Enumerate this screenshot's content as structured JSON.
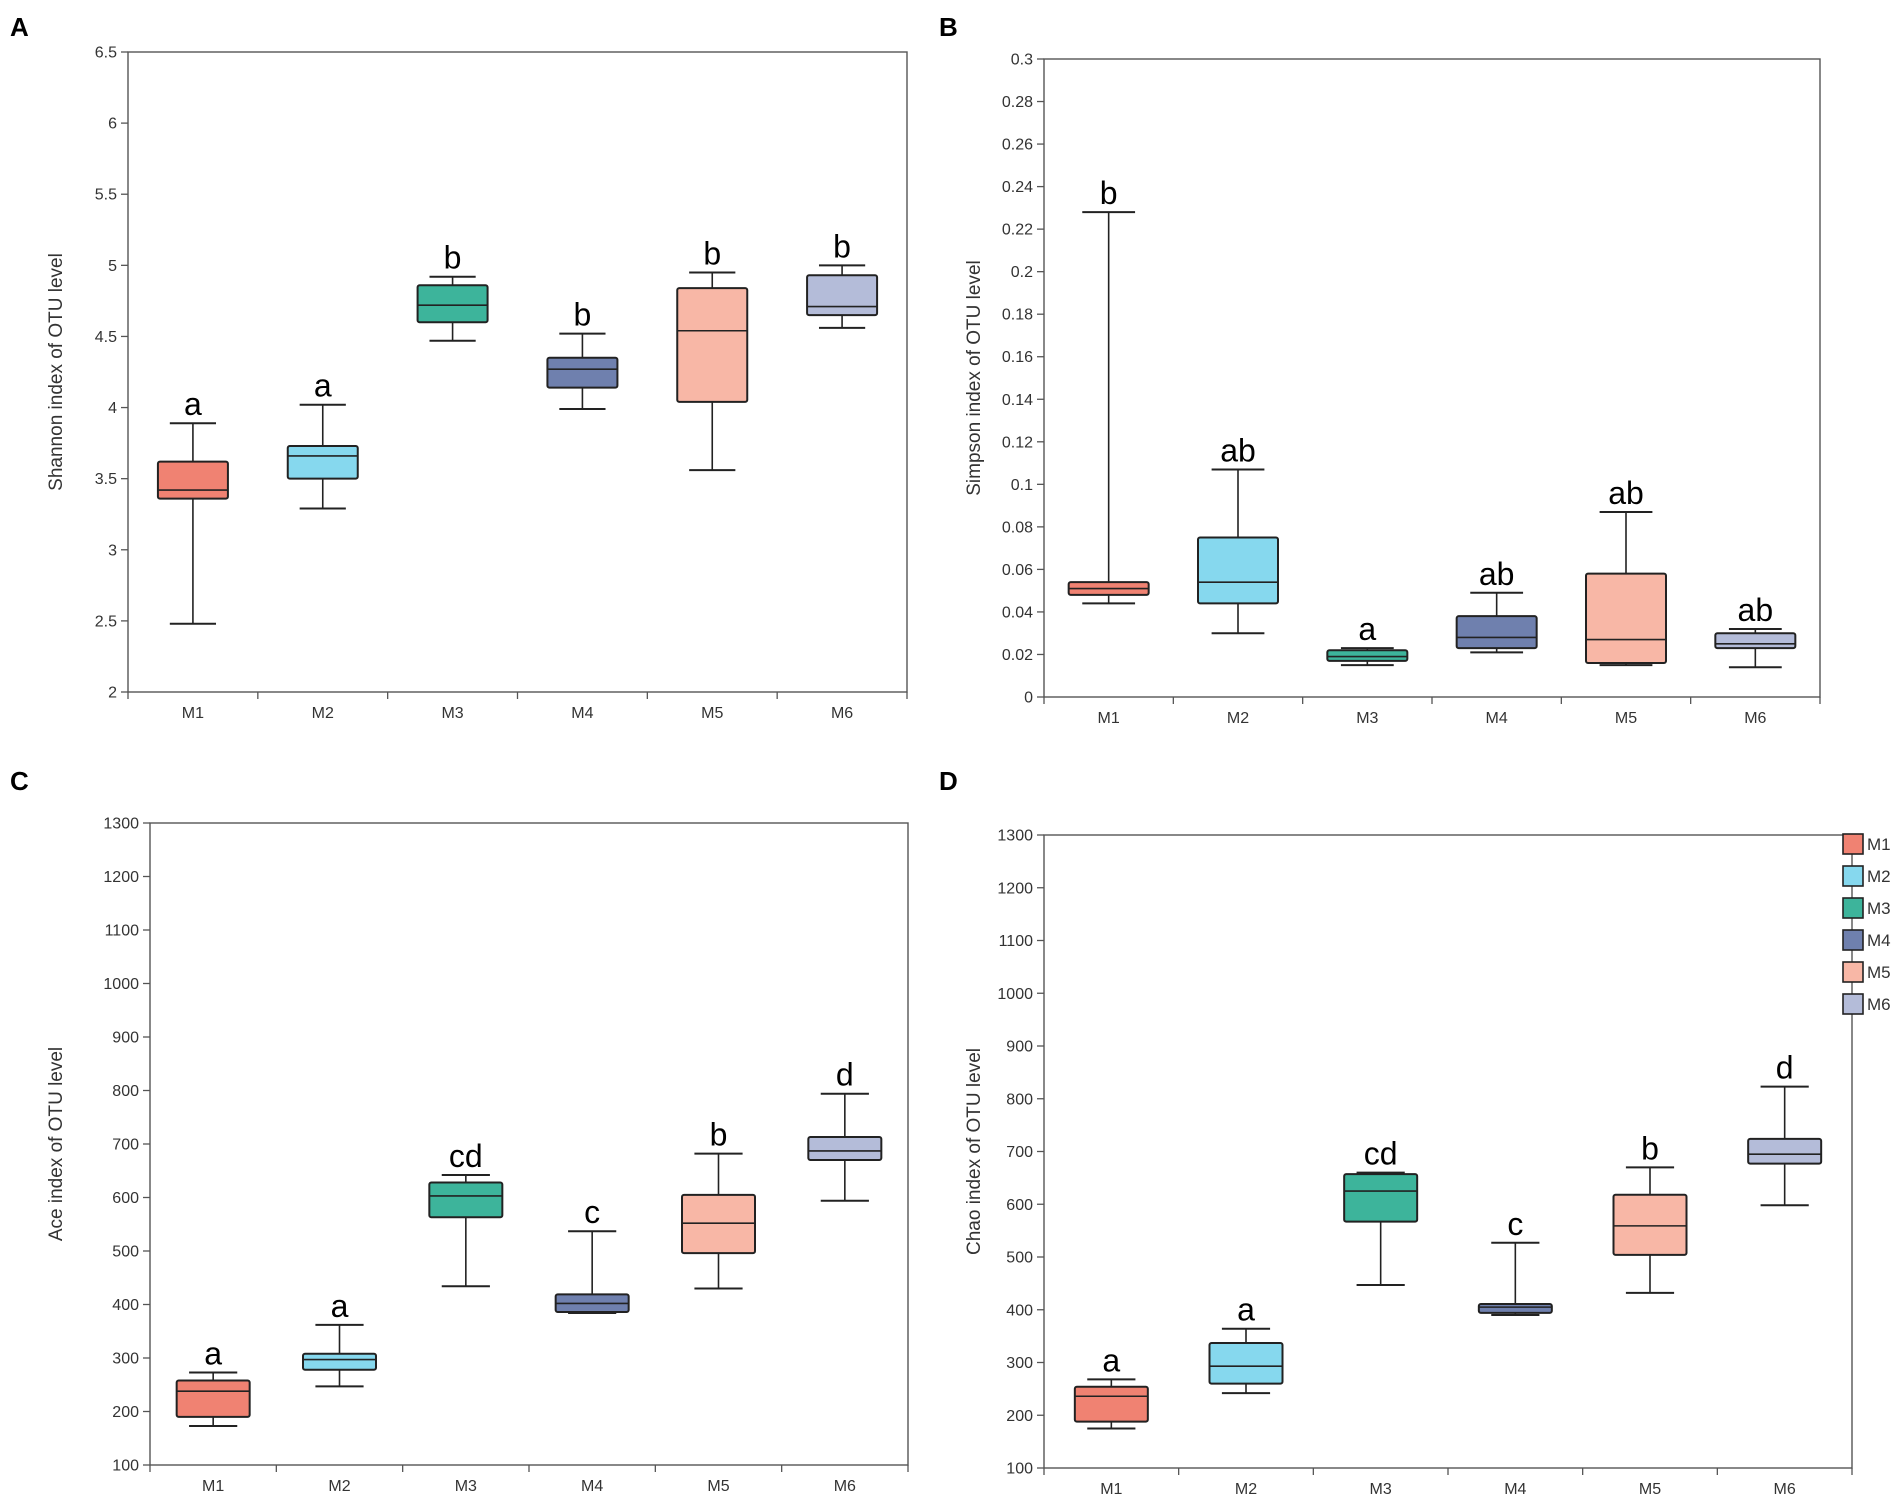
{
  "groups": [
    "M1",
    "M2",
    "M3",
    "M4",
    "M5",
    "M6"
  ],
  "colors": {
    "M1": "#f08272",
    "M2": "#86d8ee",
    "M3": "#3db49b",
    "M4": "#6f80ae",
    "M5": "#f8b7a6",
    "M6": "#b4bcd9"
  },
  "legend": {
    "entries": [
      "M1",
      "M2",
      "M3",
      "M4",
      "M5",
      "M6"
    ],
    "position": "right of panel D"
  },
  "chart_data": [
    {
      "panel": "A",
      "type": "box",
      "ylabel": "Shannon index of OTU level",
      "xlabel": "",
      "ylim": [
        2,
        6.5
      ],
      "yticks": [
        "2",
        "2.5",
        "3",
        "3.5",
        "4",
        "4.5",
        "5",
        "5.5",
        "6",
        "6.5"
      ],
      "categories": [
        "M1",
        "M2",
        "M3",
        "M4",
        "M5",
        "M6"
      ],
      "boxes": [
        {
          "group": "M1",
          "min": 2.48,
          "q1": 3.36,
          "median": 3.42,
          "q3": 3.62,
          "max": 3.89,
          "label": "a"
        },
        {
          "group": "M2",
          "min": 3.29,
          "q1": 3.5,
          "median": 3.66,
          "q3": 3.73,
          "max": 4.02,
          "label": "a"
        },
        {
          "group": "M3",
          "min": 4.47,
          "q1": 4.6,
          "median": 4.72,
          "q3": 4.86,
          "max": 4.92,
          "label": "b"
        },
        {
          "group": "M4",
          "min": 3.99,
          "q1": 4.14,
          "median": 4.27,
          "q3": 4.35,
          "max": 4.52,
          "label": "b"
        },
        {
          "group": "M5",
          "min": 3.56,
          "q1": 4.04,
          "median": 4.54,
          "q3": 4.84,
          "max": 4.95,
          "label": "b"
        },
        {
          "group": "M6",
          "min": 4.56,
          "q1": 4.65,
          "median": 4.71,
          "q3": 4.93,
          "max": 5.0,
          "label": "b"
        }
      ]
    },
    {
      "panel": "B",
      "type": "box",
      "ylabel": "Simpson index of OTU level",
      "xlabel": "",
      "ylim": [
        0,
        0.3
      ],
      "yticks": [
        "0",
        "0.02",
        "0.04",
        "0.06",
        "0.08",
        "0.1",
        "0.12",
        "0.14",
        "0.16",
        "0.18",
        "0.2",
        "0.22",
        "0.24",
        "0.26",
        "0.28",
        "0.3"
      ],
      "categories": [
        "M1",
        "M2",
        "M3",
        "M4",
        "M5",
        "M6"
      ],
      "boxes": [
        {
          "group": "M1",
          "min": 0.044,
          "q1": 0.048,
          "median": 0.051,
          "q3": 0.054,
          "max": 0.228,
          "label": "b"
        },
        {
          "group": "M2",
          "min": 0.03,
          "q1": 0.044,
          "median": 0.054,
          "q3": 0.075,
          "max": 0.107,
          "label": "ab"
        },
        {
          "group": "M3",
          "min": 0.015,
          "q1": 0.017,
          "median": 0.019,
          "q3": 0.022,
          "max": 0.023,
          "label": "a"
        },
        {
          "group": "M4",
          "min": 0.021,
          "q1": 0.023,
          "median": 0.028,
          "q3": 0.038,
          "max": 0.049,
          "label": "ab"
        },
        {
          "group": "M5",
          "min": 0.015,
          "q1": 0.016,
          "median": 0.027,
          "q3": 0.058,
          "max": 0.087,
          "label": "ab"
        },
        {
          "group": "M6",
          "min": 0.014,
          "q1": 0.023,
          "median": 0.025,
          "q3": 0.03,
          "max": 0.032,
          "label": "ab"
        }
      ]
    },
    {
      "panel": "C",
      "type": "box",
      "ylabel": "Ace index of OTU level",
      "xlabel": "",
      "ylim": [
        100,
        1300
      ],
      "yticks": [
        "100",
        "200",
        "300",
        "400",
        "500",
        "600",
        "700",
        "800",
        "900",
        "1000",
        "1100",
        "1200",
        "1300"
      ],
      "categories": [
        "M1",
        "M2",
        "M3",
        "M4",
        "M5",
        "M6"
      ],
      "boxes": [
        {
          "group": "M1",
          "min": 173,
          "q1": 190,
          "median": 238,
          "q3": 258,
          "max": 273,
          "label": "a"
        },
        {
          "group": "M2",
          "min": 247,
          "q1": 278,
          "median": 297,
          "q3": 308,
          "max": 362,
          "label": "a"
        },
        {
          "group": "M3",
          "min": 434,
          "q1": 563,
          "median": 603,
          "q3": 628,
          "max": 642,
          "label": "cd"
        },
        {
          "group": "M4",
          "min": 384,
          "q1": 386,
          "median": 402,
          "q3": 419,
          "max": 537,
          "label": "c"
        },
        {
          "group": "M5",
          "min": 430,
          "q1": 496,
          "median": 552,
          "q3": 605,
          "max": 682,
          "label": "b"
        },
        {
          "group": "M6",
          "min": 594,
          "q1": 670,
          "median": 687,
          "q3": 713,
          "max": 794,
          "label": "d"
        }
      ]
    },
    {
      "panel": "D",
      "type": "box",
      "ylabel": "Chao index of OTU level",
      "xlabel": "",
      "ylim": [
        100,
        1300
      ],
      "yticks": [
        "100",
        "200",
        "300",
        "400",
        "500",
        "600",
        "700",
        "800",
        "900",
        "1000",
        "1100",
        "1200",
        "1300"
      ],
      "categories": [
        "M1",
        "M2",
        "M3",
        "M4",
        "M5",
        "M6"
      ],
      "boxes": [
        {
          "group": "M1",
          "min": 175,
          "q1": 188,
          "median": 236,
          "q3": 254,
          "max": 268,
          "label": "a"
        },
        {
          "group": "M2",
          "min": 242,
          "q1": 260,
          "median": 293,
          "q3": 337,
          "max": 364,
          "label": "a"
        },
        {
          "group": "M3",
          "min": 447,
          "q1": 567,
          "median": 625,
          "q3": 657,
          "max": 660,
          "label": "cd"
        },
        {
          "group": "M4",
          "min": 390,
          "q1": 394,
          "median": 405,
          "q3": 411,
          "max": 527,
          "label": "c"
        },
        {
          "group": "M5",
          "min": 432,
          "q1": 504,
          "median": 559,
          "q3": 618,
          "max": 670,
          "label": "b"
        },
        {
          "group": "M6",
          "min": 598,
          "q1": 677,
          "median": 695,
          "q3": 724,
          "max": 823,
          "label": "d"
        }
      ]
    }
  ]
}
